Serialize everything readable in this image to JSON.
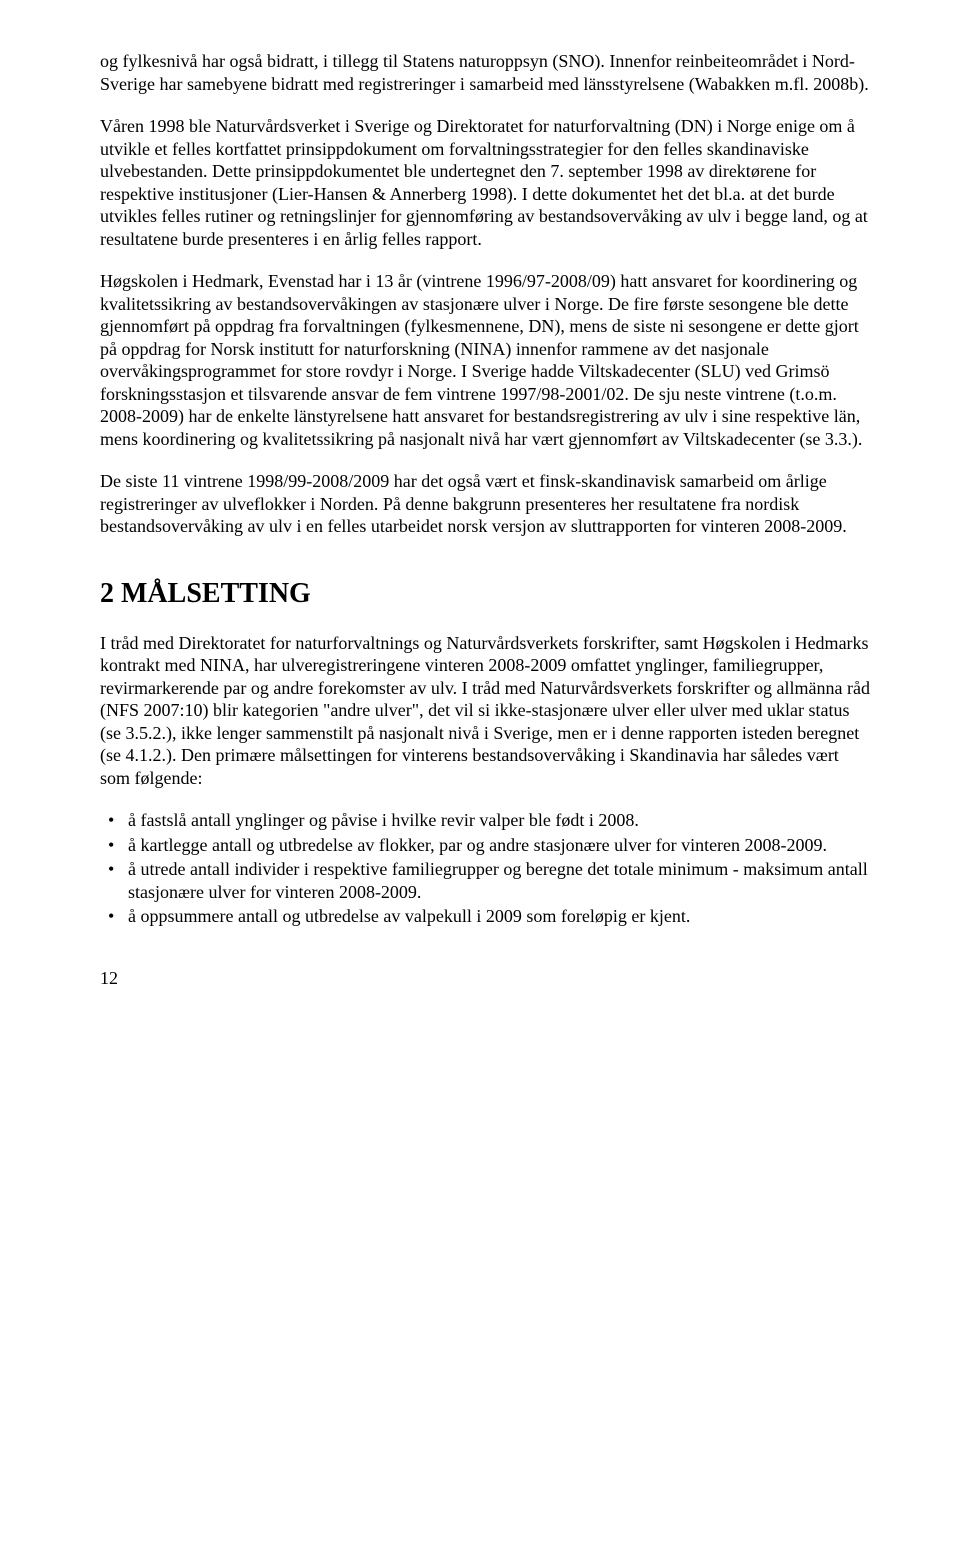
{
  "paragraphs": {
    "p1": "og fylkesnivå har også bidratt, i tillegg til Statens naturoppsyn (SNO). Innenfor reinbeiteområdet i Nord-Sverige har samebyene bidratt med registreringer i samarbeid med länsstyrelsene (Wabakken m.fl. 2008b).",
    "p2": "Våren 1998 ble Naturvårdsverket i Sverige og Direktoratet for naturforvaltning (DN) i Norge enige om å utvikle et felles kortfattet prinsippdokument om forvaltningsstrategier for den felles skandinaviske ulvebestanden. Dette prinsippdokumentet ble undertegnet den 7. september 1998 av direktørene for respektive institusjoner (Lier-Hansen & Annerberg 1998). I dette dokumentet het det bl.a. at det burde utvikles felles rutiner og retningslinjer for gjennomføring av bestandsovervåking av ulv i begge land, og at resultatene burde presenteres i en årlig felles rapport.",
    "p3": "Høgskolen i Hedmark, Evenstad har i 13 år (vintrene 1996/97-2008/09) hatt ansvaret for koordinering og kvalitetssikring av bestandsovervåkingen av stasjonære ulver i Norge. De fire første sesongene ble dette gjennomført på oppdrag fra forvaltningen (fylkesmennene, DN), mens de siste ni sesongene er dette gjort på oppdrag for Norsk institutt for naturforskning (NINA) innenfor rammene av det nasjonale overvåkingsprogrammet for store rovdyr i Norge. I Sverige hadde Viltskadecenter (SLU) ved Grimsö forskningsstasjon et tilsvarende ansvar de fem vintrene 1997/98-2001/02. De sju neste vintrene (t.o.m. 2008-2009) har de enkelte länstyrelsene hatt ansvaret for bestandsregistrering av ulv i sine respektive län, mens koordinering og kvalitetssikring på nasjonalt nivå har vært gjennomført av Viltskadecenter (se 3.3.).",
    "p4": "De siste 11 vintrene 1998/99-2008/2009 har det også vært et finsk-skandinavisk samarbeid om årlige registreringer av ulveflokker i Norden. På denne bakgrunn presenteres her resultatene fra nordisk bestandsovervåking av ulv i en felles utarbeidet norsk versjon av sluttrapporten for vinteren 2008-2009.",
    "p5": "I tråd med Direktoratet for naturforvaltnings og Naturvårdsverkets forskrifter, samt Høgskolen i Hedmarks kontrakt med NINA, har ulveregistreringene vinteren 2008-2009 omfattet ynglinger, familiegrupper, revirmarkerende par og andre forekomster av ulv. I tråd med Naturvårdsverkets forskrifter og allmänna råd (NFS 2007:10) blir kategorien \"andre ulver\", det vil si ikke-stasjonære ulver eller ulver med uklar status (se 3.5.2.), ikke lenger sammenstilt på nasjonalt nivå i Sverige, men er i denne rapporten isteden beregnet (se 4.1.2.). Den primære målsettingen for vinterens bestandsovervåking i Skandinavia har således vært som følgende:"
  },
  "heading": "2  MÅLSETTING",
  "bullets": {
    "b1": "å fastslå antall ynglinger og påvise i hvilke revir valper ble født i 2008.",
    "b2": "å kartlegge antall og utbredelse av flokker, par og andre stasjonære ulver for vinteren 2008-2009.",
    "b3": "å utrede antall individer i respektive familiegrupper og beregne det totale minimum - maksimum antall stasjonære ulver for vinteren 2008-2009.",
    "b4": "å oppsummere antall og utbredelse av valpekull i 2009 som foreløpig er kjent."
  },
  "pageNumber": "12"
}
